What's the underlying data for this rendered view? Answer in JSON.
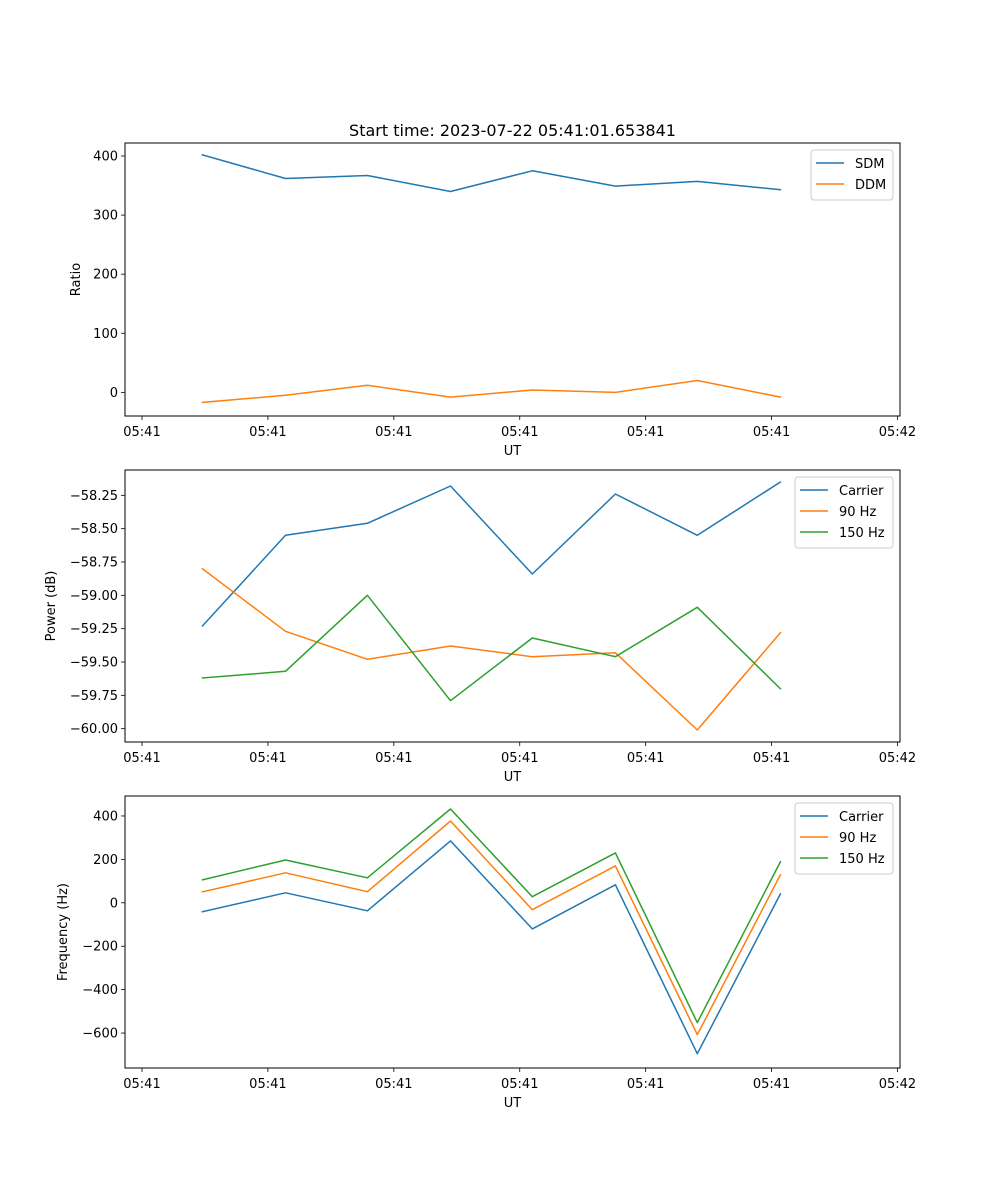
{
  "chart_data": [
    {
      "type": "line",
      "title": "Start time: 2023-07-22 05:41:01.653841",
      "xlabel": "UT",
      "ylabel": "Ratio",
      "x_units": "seconds after 05:41:00",
      "x": [
        4.8,
        11.4,
        17.9,
        24.5,
        31.0,
        37.6,
        44.1,
        50.7
      ],
      "xlim": [
        -1.35,
        60.2
      ],
      "xticks": [
        0,
        10,
        20,
        30,
        40,
        50,
        60
      ],
      "xtick_labels": [
        "05:41",
        "05:41",
        "05:41",
        "05:41",
        "05:41",
        "05:41",
        "05:42"
      ],
      "ylim": [
        -40,
        422
      ],
      "yticks": [
        0,
        100,
        200,
        300,
        400
      ],
      "ytick_labels": [
        "0",
        "100",
        "200",
        "300",
        "400"
      ],
      "grid": false,
      "legend_position": "top-right",
      "series": [
        {
          "name": "SDM",
          "color": "#1f77b4",
          "values": [
            402,
            362,
            367,
            340,
            375,
            349,
            357,
            343
          ]
        },
        {
          "name": "DDM",
          "color": "#ff7f0e",
          "values": [
            -17,
            -5,
            12,
            -8,
            4,
            0,
            20,
            -8
          ]
        }
      ]
    },
    {
      "type": "line",
      "title": "",
      "xlabel": "UT",
      "ylabel": "Power (dB)",
      "x_units": "seconds after 05:41:00",
      "x": [
        4.8,
        11.4,
        17.9,
        24.5,
        31.0,
        37.6,
        44.1,
        50.7
      ],
      "xlim": [
        -1.35,
        60.2
      ],
      "xticks": [
        0,
        10,
        20,
        30,
        40,
        50,
        60
      ],
      "xtick_labels": [
        "05:41",
        "05:41",
        "05:41",
        "05:41",
        "05:41",
        "05:41",
        "05:42"
      ],
      "ylim": [
        -60.1,
        -58.06
      ],
      "yticks": [
        -58.25,
        -58.5,
        -58.75,
        -59.0,
        -59.25,
        -59.5,
        -59.75,
        -60.0
      ],
      "ytick_labels": [
        "−58.25",
        "−58.50",
        "−58.75",
        "−59.00",
        "−59.25",
        "−59.50",
        "−59.75",
        "−60.00"
      ],
      "grid": false,
      "legend_position": "top-right",
      "series": [
        {
          "name": "Carrier",
          "color": "#1f77b4",
          "values": [
            -59.23,
            -58.55,
            -58.46,
            -58.18,
            -58.84,
            -58.24,
            -58.55,
            -58.15
          ]
        },
        {
          "name": "90 Hz",
          "color": "#ff7f0e",
          "values": [
            -58.8,
            -59.27,
            -59.48,
            -59.38,
            -59.46,
            -59.43,
            -60.01,
            -59.28
          ]
        },
        {
          "name": "150 Hz",
          "color": "#2ca02c",
          "values": [
            -59.62,
            -59.57,
            -59.0,
            -59.79,
            -59.32,
            -59.46,
            -59.09,
            -59.7
          ]
        }
      ]
    },
    {
      "type": "line",
      "title": "",
      "xlabel": "UT",
      "ylabel": "Frequency (Hz)",
      "x_units": "seconds after 05:41:00",
      "x": [
        4.8,
        11.4,
        17.9,
        24.5,
        31.0,
        37.6,
        44.1,
        50.7
      ],
      "xlim": [
        -1.35,
        60.2
      ],
      "xticks": [
        0,
        10,
        20,
        30,
        40,
        50,
        60
      ],
      "xtick_labels": [
        "05:41",
        "05:41",
        "05:41",
        "05:41",
        "05:41",
        "05:41",
        "05:42"
      ],
      "ylim": [
        -761,
        492
      ],
      "yticks": [
        400,
        200,
        0,
        -200,
        -400,
        -600
      ],
      "ytick_labels": [
        "400",
        "200",
        "0",
        "−200",
        "−400",
        "−600"
      ],
      "grid": false,
      "legend_position": "top-right",
      "series": [
        {
          "name": "Carrier",
          "color": "#1f77b4",
          "values": [
            -41,
            46,
            -37,
            285,
            -120,
            83,
            -695,
            41
          ]
        },
        {
          "name": "90 Hz",
          "color": "#ff7f0e",
          "values": [
            50,
            138,
            51,
            377,
            -32,
            170,
            -607,
            129
          ]
        },
        {
          "name": "150 Hz",
          "color": "#2ca02c",
          "values": [
            106,
            197,
            115,
            432,
            28,
            230,
            -552,
            189
          ]
        }
      ]
    }
  ]
}
